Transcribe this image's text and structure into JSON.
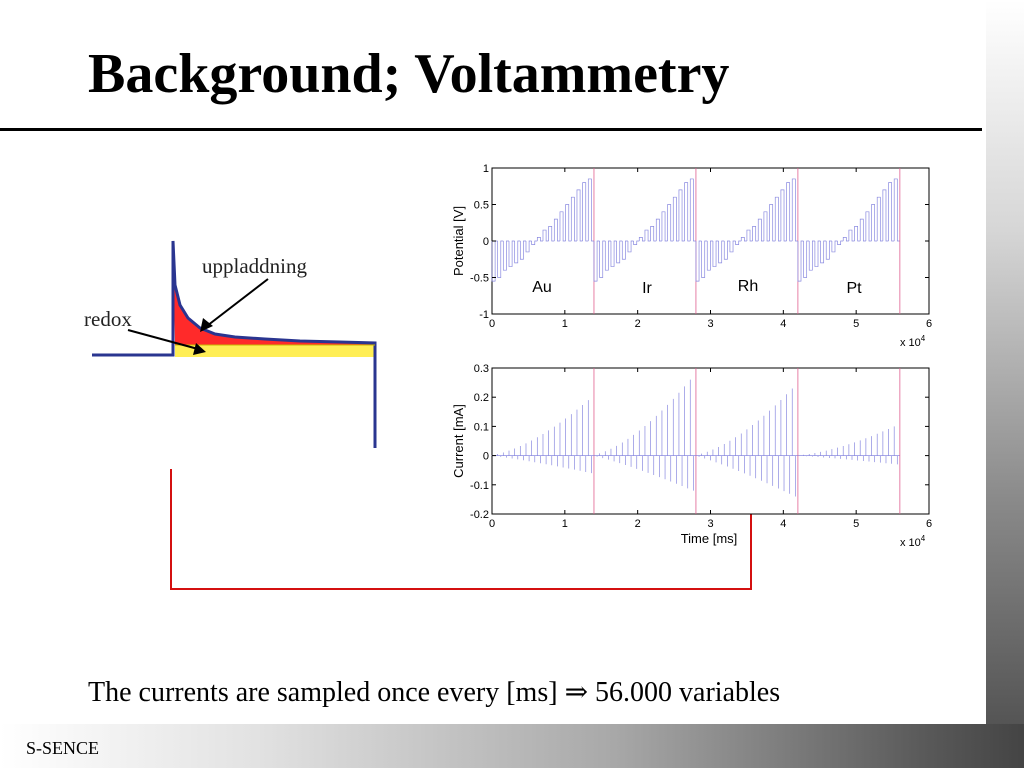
{
  "slide": {
    "title": "Background; Voltammetry",
    "caption_text": "The currents are sampled once every [ms]",
    "caption_arrow": "⇒",
    "caption_result": "56.000 variables",
    "footer": "S-SENCE"
  },
  "diagram": {
    "label_charging": "uppladdning",
    "label_redox": "redox",
    "colors": {
      "charging_fill": "#ff2a2a",
      "redox_fill": "#ffee55",
      "curve": "#2a3590",
      "connector": "#d41010"
    }
  },
  "chart_data": [
    {
      "type": "line",
      "ylabel": "Potential [V]",
      "xlabel": "",
      "xlim": [
        0,
        6
      ],
      "ylim": [
        -1,
        1
      ],
      "xticks": [
        "0",
        "1",
        "2",
        "3",
        "4",
        "5",
        "6"
      ],
      "yticks": [
        "1",
        "0.5",
        "0",
        "-0.5",
        "-1"
      ],
      "x_multiplier": "x 10",
      "x_multiplier_exp": "4",
      "segments": [
        {
          "name": "Au",
          "start": 0,
          "end": 1.4
        },
        {
          "name": "Ir",
          "start": 1.4,
          "end": 2.8
        },
        {
          "name": "Rh",
          "start": 2.8,
          "end": 4.2
        },
        {
          "name": "Pt",
          "start": 4.2,
          "end": 5.6
        }
      ],
      "pulse_levels": [
        -0.55,
        -0.5,
        -0.4,
        -0.35,
        -0.3,
        -0.25,
        -0.15,
        -0.05,
        0.05,
        0.15,
        0.2,
        0.3,
        0.4,
        0.5,
        0.6,
        0.7,
        0.8,
        0.85
      ]
    },
    {
      "type": "line",
      "ylabel": "Current [mA]",
      "xlabel": "Time [ms]",
      "xlim": [
        0,
        6
      ],
      "ylim": [
        -0.2,
        0.3
      ],
      "xticks": [
        "0",
        "1",
        "2",
        "3",
        "4",
        "5",
        "6"
      ],
      "yticks": [
        "0.3",
        "0.2",
        "0.1",
        "0",
        "-0.1",
        "-0.2"
      ],
      "x_multiplier": "x 10",
      "x_multiplier_exp": "4",
      "segment_peaks": [
        {
          "segment": "Au",
          "max": 0.19,
          "min": -0.06
        },
        {
          "segment": "Ir",
          "max": 0.26,
          "min": -0.12
        },
        {
          "segment": "Rh",
          "max": 0.23,
          "min": -0.14
        },
        {
          "segment": "Pt",
          "max": 0.1,
          "min": -0.03
        }
      ]
    }
  ]
}
